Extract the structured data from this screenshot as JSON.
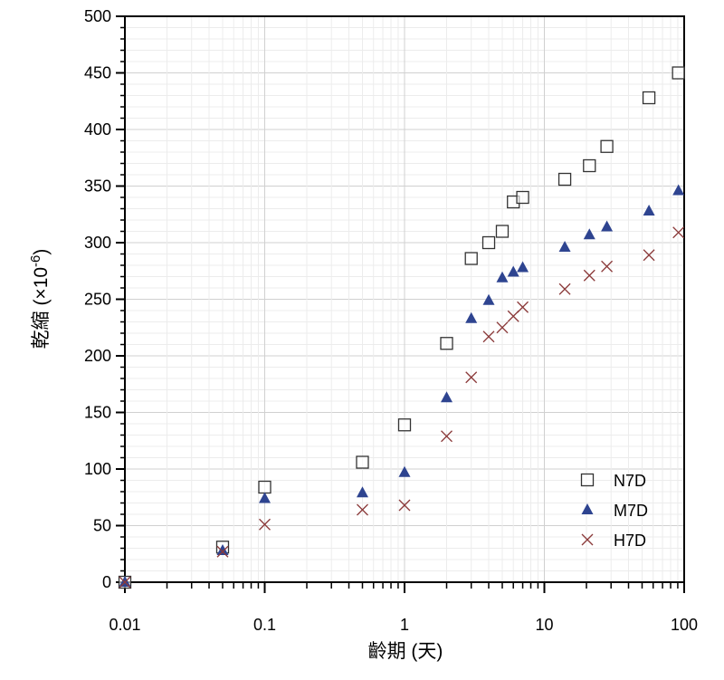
{
  "chart_data": {
    "type": "scatter",
    "xscale": "log",
    "xlim": [
      0.01,
      100
    ],
    "ylim": [
      0,
      500
    ],
    "xlabel": "齡期 (天)",
    "ylabel": "乾縮 (×10-6)",
    "ylabel_parts": {
      "main": "乾縮 (×10",
      "sup": "-6",
      "close": ")"
    },
    "grid": true,
    "legend_position": "bottom-right",
    "x_ticks": [
      {
        "value": 0.01,
        "label": "0.01"
      },
      {
        "value": 0.1,
        "label": "0.1"
      },
      {
        "value": 1,
        "label": "1"
      },
      {
        "value": 10,
        "label": "10"
      },
      {
        "value": 100,
        "label": "100"
      }
    ],
    "y_ticks": [
      {
        "value": 0,
        "label": "0"
      },
      {
        "value": 50,
        "label": "50"
      },
      {
        "value": 100,
        "label": "100"
      },
      {
        "value": 150,
        "label": "150"
      },
      {
        "value": 200,
        "label": "200"
      },
      {
        "value": 250,
        "label": "250"
      },
      {
        "value": 300,
        "label": "300"
      },
      {
        "value": 350,
        "label": "350"
      },
      {
        "value": 400,
        "label": "400"
      },
      {
        "value": 450,
        "label": "450"
      },
      {
        "value": 500,
        "label": "500"
      }
    ],
    "series": [
      {
        "name": "N7D",
        "marker": "square-open",
        "color": "#333333",
        "points": [
          [
            0.01,
            0
          ],
          [
            0.05,
            31
          ],
          [
            0.1,
            84
          ],
          [
            0.5,
            106
          ],
          [
            1,
            139
          ],
          [
            2,
            211
          ],
          [
            3,
            286
          ],
          [
            4,
            300
          ],
          [
            5,
            310
          ],
          [
            6,
            336
          ],
          [
            7,
            340
          ],
          [
            14,
            356
          ],
          [
            21,
            368
          ],
          [
            28,
            385
          ],
          [
            56,
            428
          ],
          [
            91,
            450
          ]
        ]
      },
      {
        "name": "M7D",
        "marker": "triangle-filled",
        "color": "#2e4490",
        "points": [
          [
            0.01,
            0
          ],
          [
            0.05,
            28
          ],
          [
            0.1,
            74
          ],
          [
            0.5,
            79
          ],
          [
            1,
            97
          ],
          [
            2,
            163
          ],
          [
            3,
            233
          ],
          [
            4,
            249
          ],
          [
            5,
            269
          ],
          [
            6,
            274
          ],
          [
            7,
            278
          ],
          [
            14,
            296
          ],
          [
            21,
            307
          ],
          [
            28,
            314
          ],
          [
            56,
            328
          ],
          [
            91,
            346
          ]
        ]
      },
      {
        "name": "H7D",
        "marker": "x",
        "color": "#8b3a3a",
        "points": [
          [
            0.01,
            0
          ],
          [
            0.05,
            27
          ],
          [
            0.1,
            51
          ],
          [
            0.5,
            64
          ],
          [
            1,
            68
          ],
          [
            2,
            129
          ],
          [
            3,
            181
          ],
          [
            4,
            217
          ],
          [
            5,
            225
          ],
          [
            6,
            235
          ],
          [
            7,
            243
          ],
          [
            14,
            259
          ],
          [
            21,
            271
          ],
          [
            28,
            279
          ],
          [
            56,
            289
          ],
          [
            91,
            309
          ]
        ]
      }
    ]
  }
}
